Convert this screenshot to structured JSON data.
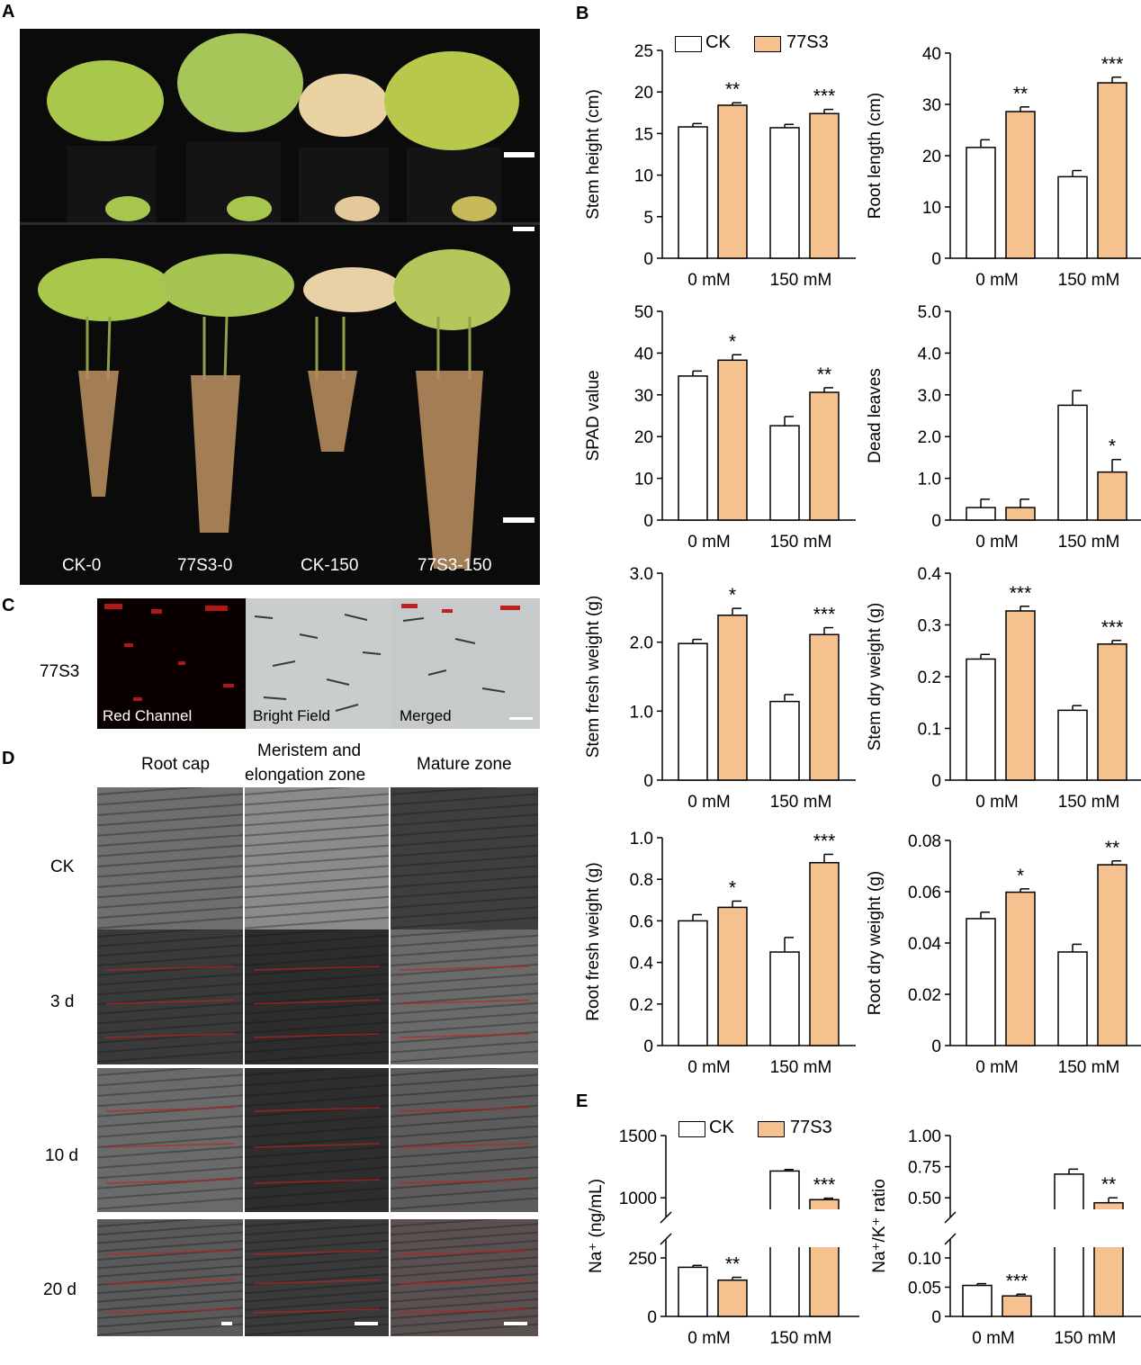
{
  "panels": {
    "A": "A",
    "B": "B",
    "C": "C",
    "D": "D",
    "E": "E"
  },
  "colors": {
    "ck": "#ffffff",
    "s77": "#f5c18e",
    "stroke": "#000000",
    "photo_bg": "#0b0b0b"
  },
  "panelA": {
    "labels": [
      "CK-0",
      "77S3-0",
      "CK-150",
      "77S3-150"
    ]
  },
  "panelC": {
    "row_label": "77S3",
    "channels": [
      "Red Channel",
      "Bright Field",
      "Merged"
    ]
  },
  "panelD": {
    "col_headers": [
      "Root cap",
      "Meristem and elongation zone",
      "Mature zone"
    ],
    "col2_line1": "Meristem and",
    "col2_line2": "elongation zone",
    "row_labels": [
      "CK",
      "3 d",
      "10 d",
      "20 d"
    ]
  },
  "legend": {
    "ck": "CK",
    "s77": "77S3"
  },
  "chart_data": [
    {
      "type": "bar",
      "id": "stem-height",
      "categories": [
        "0 mM",
        "150 mM"
      ],
      "ylabel": "Stem height (cm)",
      "ylim": [
        0,
        25
      ],
      "yticks": [
        "0",
        "5",
        "10",
        "15",
        "20",
        "25"
      ],
      "series": [
        {
          "name": "CK",
          "values": [
            15.8,
            15.7
          ],
          "err": [
            0.4,
            0.4
          ]
        },
        {
          "name": "77S3",
          "values": [
            18.4,
            17.4
          ],
          "err": [
            0.3,
            0.5
          ]
        }
      ],
      "sig": [
        "**",
        "***"
      ]
    },
    {
      "type": "bar",
      "id": "root-length",
      "categories": [
        "0 mM",
        "150 mM"
      ],
      "ylabel": "Root length (cm)",
      "ylim": [
        0,
        40
      ],
      "yticks": [
        "0",
        "10",
        "20",
        "30",
        "40"
      ],
      "series": [
        {
          "name": "CK",
          "values": [
            21.6,
            15.9
          ],
          "err": [
            1.5,
            1.2
          ]
        },
        {
          "name": "77S3",
          "values": [
            28.6,
            34.2
          ],
          "err": [
            0.9,
            1.1
          ]
        }
      ],
      "sig": [
        "**",
        "***"
      ]
    },
    {
      "type": "bar",
      "id": "spad",
      "categories": [
        "0 mM",
        "150 mM"
      ],
      "ylabel": "SPAD value",
      "ylim": [
        0,
        50
      ],
      "yticks": [
        "0",
        "10",
        "20",
        "30",
        "40",
        "50"
      ],
      "series": [
        {
          "name": "CK",
          "values": [
            34.5,
            22.6
          ],
          "err": [
            1.2,
            2.2
          ]
        },
        {
          "name": "77S3",
          "values": [
            38.3,
            30.6
          ],
          "err": [
            1.3,
            1.1
          ]
        }
      ],
      "sig": [
        "*",
        "**"
      ]
    },
    {
      "type": "bar",
      "id": "dead-leaves",
      "categories": [
        "0 mM",
        "150 mM"
      ],
      "ylabel": "Dead leaves",
      "ylim": [
        0,
        5
      ],
      "yticks": [
        "0",
        "1.0",
        "2.0",
        "3.0",
        "4.0",
        "5.0"
      ],
      "series": [
        {
          "name": "CK",
          "values": [
            0.3,
            2.75
          ],
          "err": [
            0.2,
            0.35
          ]
        },
        {
          "name": "77S3",
          "values": [
            0.3,
            1.15
          ],
          "err": [
            0.2,
            0.3
          ]
        }
      ],
      "sig": [
        "",
        "*"
      ]
    },
    {
      "type": "bar",
      "id": "stem-fresh",
      "categories": [
        "0 mM",
        "150 mM"
      ],
      "ylabel": "Stem fresh weight (g)",
      "ylim": [
        0,
        3
      ],
      "yticks": [
        "0",
        "1.0",
        "2.0",
        "3.0"
      ],
      "series": [
        {
          "name": "CK",
          "values": [
            1.98,
            1.14
          ],
          "err": [
            0.06,
            0.1
          ]
        },
        {
          "name": "77S3",
          "values": [
            2.39,
            2.11
          ],
          "err": [
            0.1,
            0.1
          ]
        }
      ],
      "sig": [
        "*",
        "***"
      ]
    },
    {
      "type": "bar",
      "id": "stem-dry",
      "categories": [
        "0 mM",
        "150 mM"
      ],
      "ylabel": "Stem dry weight (g)",
      "ylim": [
        0,
        0.4
      ],
      "yticks": [
        "0",
        "0.1",
        "0.2",
        "0.3",
        "0.4"
      ],
      "series": [
        {
          "name": "CK",
          "values": [
            0.234,
            0.135
          ],
          "err": [
            0.009,
            0.009
          ]
        },
        {
          "name": "77S3",
          "values": [
            0.327,
            0.263
          ],
          "err": [
            0.009,
            0.007
          ]
        }
      ],
      "sig": [
        "***",
        "***"
      ]
    },
    {
      "type": "bar",
      "id": "root-fresh",
      "categories": [
        "0 mM",
        "150 mM"
      ],
      "ylabel": "Root fresh weight (g)",
      "ylim": [
        0,
        1
      ],
      "yticks": [
        "0",
        "0.2",
        "0.4",
        "0.6",
        "0.8",
        "1.0"
      ],
      "series": [
        {
          "name": "CK",
          "values": [
            0.6,
            0.45
          ],
          "err": [
            0.03,
            0.07
          ]
        },
        {
          "name": "77S3",
          "values": [
            0.665,
            0.88
          ],
          "err": [
            0.03,
            0.04
          ]
        }
      ],
      "sig": [
        "*",
        "***"
      ]
    },
    {
      "type": "bar",
      "id": "root-dry",
      "categories": [
        "0 mM",
        "150 mM"
      ],
      "ylabel": "Root  dry weight (g)",
      "ylim": [
        0,
        0.08
      ],
      "yticks": [
        "0",
        "0.02",
        "0.04",
        "0.06",
        "0.08"
      ],
      "series": [
        {
          "name": "CK",
          "values": [
            0.0495,
            0.0365
          ],
          "err": [
            0.0025,
            0.003
          ]
        },
        {
          "name": "77S3",
          "values": [
            0.0598,
            0.0705
          ],
          "err": [
            0.0013,
            0.0015
          ]
        }
      ],
      "sig": [
        "*",
        "**"
      ]
    },
    {
      "type": "bar",
      "id": "na",
      "categories": [
        "0 mM",
        "150 mM"
      ],
      "ylabel": "Na⁺ (ng/mL)",
      "broken_axis": true,
      "ylim_lower": [
        0,
        300
      ],
      "ylim_upper": [
        900,
        1500
      ],
      "yticks": [
        "0",
        "250",
        "1000",
        "1500"
      ],
      "series": [
        {
          "name": "CK",
          "values": [
            210,
            1215
          ],
          "err": [
            8,
            12
          ]
        },
        {
          "name": "77S3",
          "values": [
            155,
            985
          ],
          "err": [
            12,
            12
          ]
        }
      ],
      "sig": [
        "**",
        "***"
      ]
    },
    {
      "type": "bar",
      "id": "nak",
      "categories": [
        "0 mM",
        "150 mM"
      ],
      "ylabel": "Na⁺/K⁺ ratio",
      "broken_axis": true,
      "ylim_lower": [
        0,
        0.12
      ],
      "ylim_upper": [
        0.4,
        1.0
      ],
      "yticks": [
        "0",
        "0.05",
        "0.10",
        "0.50",
        "0.75",
        "1.00"
      ],
      "series": [
        {
          "name": "CK",
          "values": [
            0.053,
            0.69
          ],
          "err": [
            0.003,
            0.04
          ]
        },
        {
          "name": "77S3",
          "values": [
            0.035,
            0.46
          ],
          "err": [
            0.003,
            0.04
          ]
        }
      ],
      "sig": [
        "***",
        "**"
      ]
    }
  ]
}
